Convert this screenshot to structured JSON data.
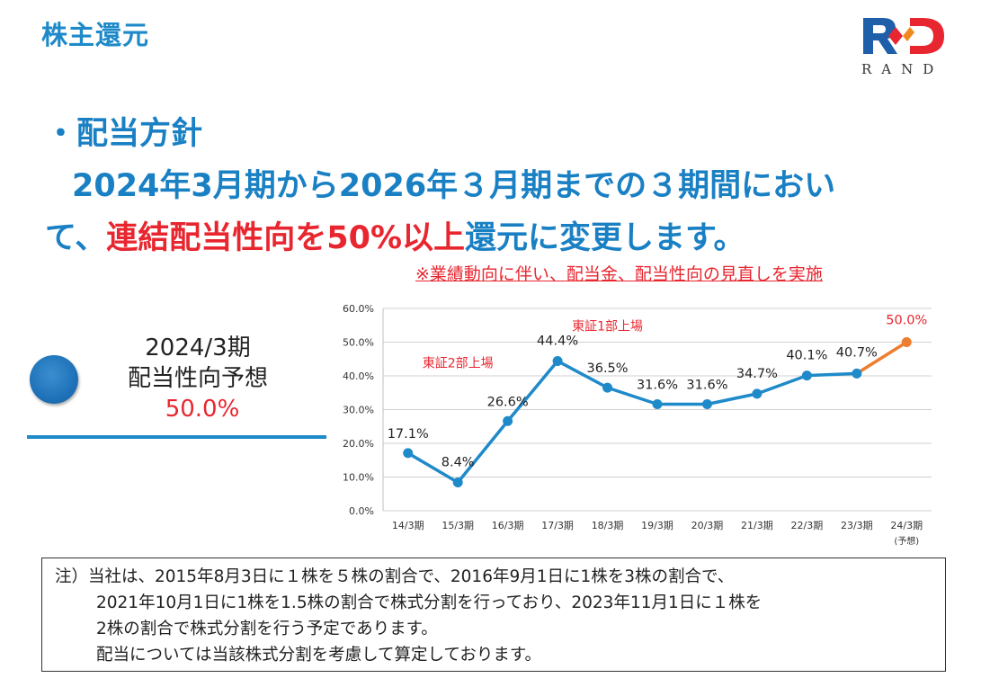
{
  "page": {
    "title": "株主還元",
    "logo_text": "RAND",
    "heading_line1": "・配当方針",
    "heading_line2": "2024年3月期から2026年３月期までの３期間におい",
    "heading_line3a": "て、",
    "heading_line3_red": "連結配当性向を50%以上",
    "heading_line3b": "還元に変更します。",
    "notice": "※業績動向に伴い、配当金、配当性向の見直しを実施",
    "forecast_line1": "2024/3期",
    "forecast_line2": "配当性向予想",
    "forecast_value": "50.0%",
    "note_lines": [
      "注）当社は、2015年8月3日に１株を５株の割合で、2016年9月1日に1株を3株の割合で、",
      "2021年10月1日に1株を1.5株の割合で株式分割を行っており、2023年11月1日に１株を",
      "2株の割合で株式分割を行う予定であります。",
      "配当については当該株式分割を考慮して算定しております。"
    ],
    "colors": {
      "blue": "#1f8ac9",
      "red": "#e8262f",
      "orange": "#ed7d31"
    }
  },
  "chart_data": {
    "type": "line",
    "categories": [
      "14/3期",
      "15/3期",
      "16/3期",
      "17/3期",
      "18/3期",
      "19/3期",
      "20/3期",
      "21/3期",
      "22/3期",
      "23/3期",
      "24/3期"
    ],
    "category_sublabel": {
      "index": 10,
      "text": "(予想)"
    },
    "values": [
      17.1,
      8.4,
      26.6,
      44.4,
      36.5,
      31.6,
      31.6,
      34.7,
      40.1,
      40.7,
      50.0
    ],
    "data_labels": [
      "17.1%",
      "8.4%",
      "26.6%",
      "44.4%",
      "36.5%",
      "31.6%",
      "31.6%",
      "34.7%",
      "40.1%",
      "40.7%",
      "50.0%"
    ],
    "yticks": [
      "0.0%",
      "10.0%",
      "20.0%",
      "30.0%",
      "40.0%",
      "50.0%",
      "60.0%"
    ],
    "ylim": [
      0,
      60
    ],
    "grid": true,
    "forecast_from_index": 9,
    "annotations": [
      {
        "text": "東証2部上場",
        "x_index": 1.0,
        "y": 42.5
      },
      {
        "text": "東証1部上場",
        "x_index": 4.0,
        "y": 53.5
      }
    ]
  }
}
